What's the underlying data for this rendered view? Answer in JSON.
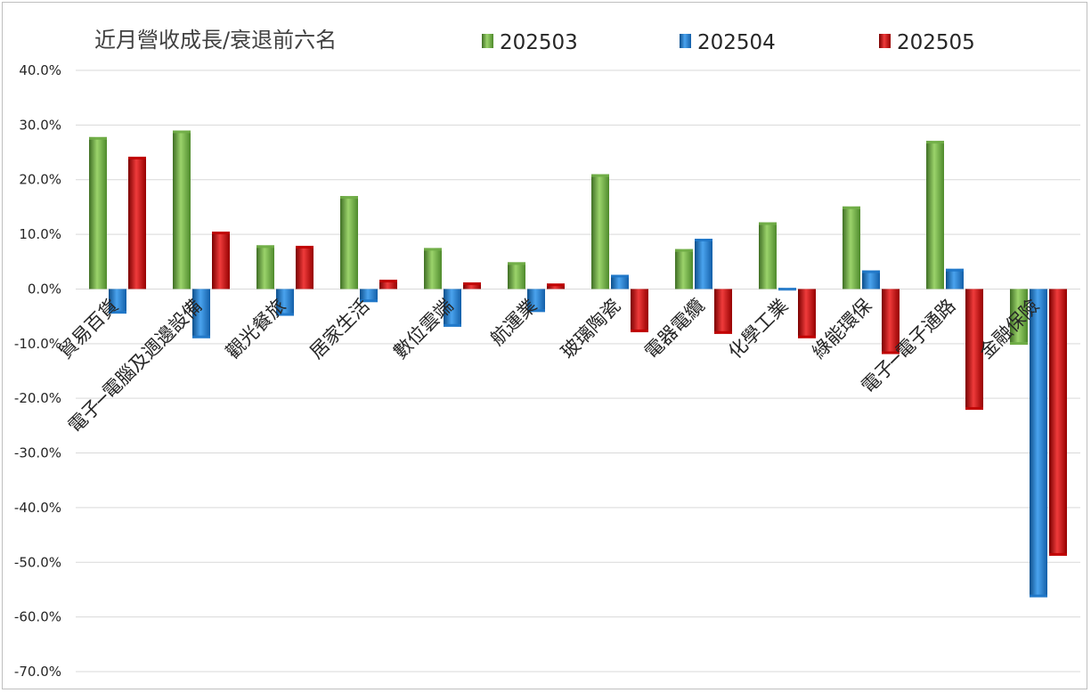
{
  "chart_data": {
    "type": "bar",
    "title": "近月營收成長/衰退前六名",
    "categories": [
      "貿易百貨",
      "電子─電腦及週邊設備",
      "觀光餐旅",
      "居家生活",
      "數位雲端",
      "航運業",
      "玻璃陶瓷",
      "電器電纜",
      "化學工業",
      "綠能環保",
      "電子─電子通路",
      "金融保險"
    ],
    "series": [
      {
        "name": "202503",
        "color": "#70ad47",
        "values": [
          27.8,
          29.0,
          8.0,
          17.0,
          7.5,
          4.9,
          21.0,
          7.3,
          12.2,
          15.1,
          27.1,
          -10.2
        ]
      },
      {
        "name": "202504",
        "color": "#1f77c8",
        "values": [
          -4.5,
          -9.0,
          -4.9,
          -2.4,
          -6.9,
          -4.2,
          2.6,
          9.2,
          0.2,
          3.4,
          3.7,
          -56.4
        ]
      },
      {
        "name": "202505",
        "color": "#c00000",
        "values": [
          24.2,
          10.5,
          7.9,
          1.7,
          1.2,
          1.0,
          -7.9,
          -8.2,
          -9.0,
          -11.9,
          -22.1,
          -48.8
        ]
      }
    ],
    "y_ticks": [
      "40.0%",
      "30.0%",
      "20.0%",
      "10.0%",
      "0.0%",
      "-10.0%",
      "-20.0%",
      "-30.0%",
      "-40.0%",
      "-50.0%",
      "-60.0%",
      "-70.0%"
    ],
    "ylim": [
      -70,
      40
    ],
    "grid": true,
    "legend_position": "top"
  }
}
